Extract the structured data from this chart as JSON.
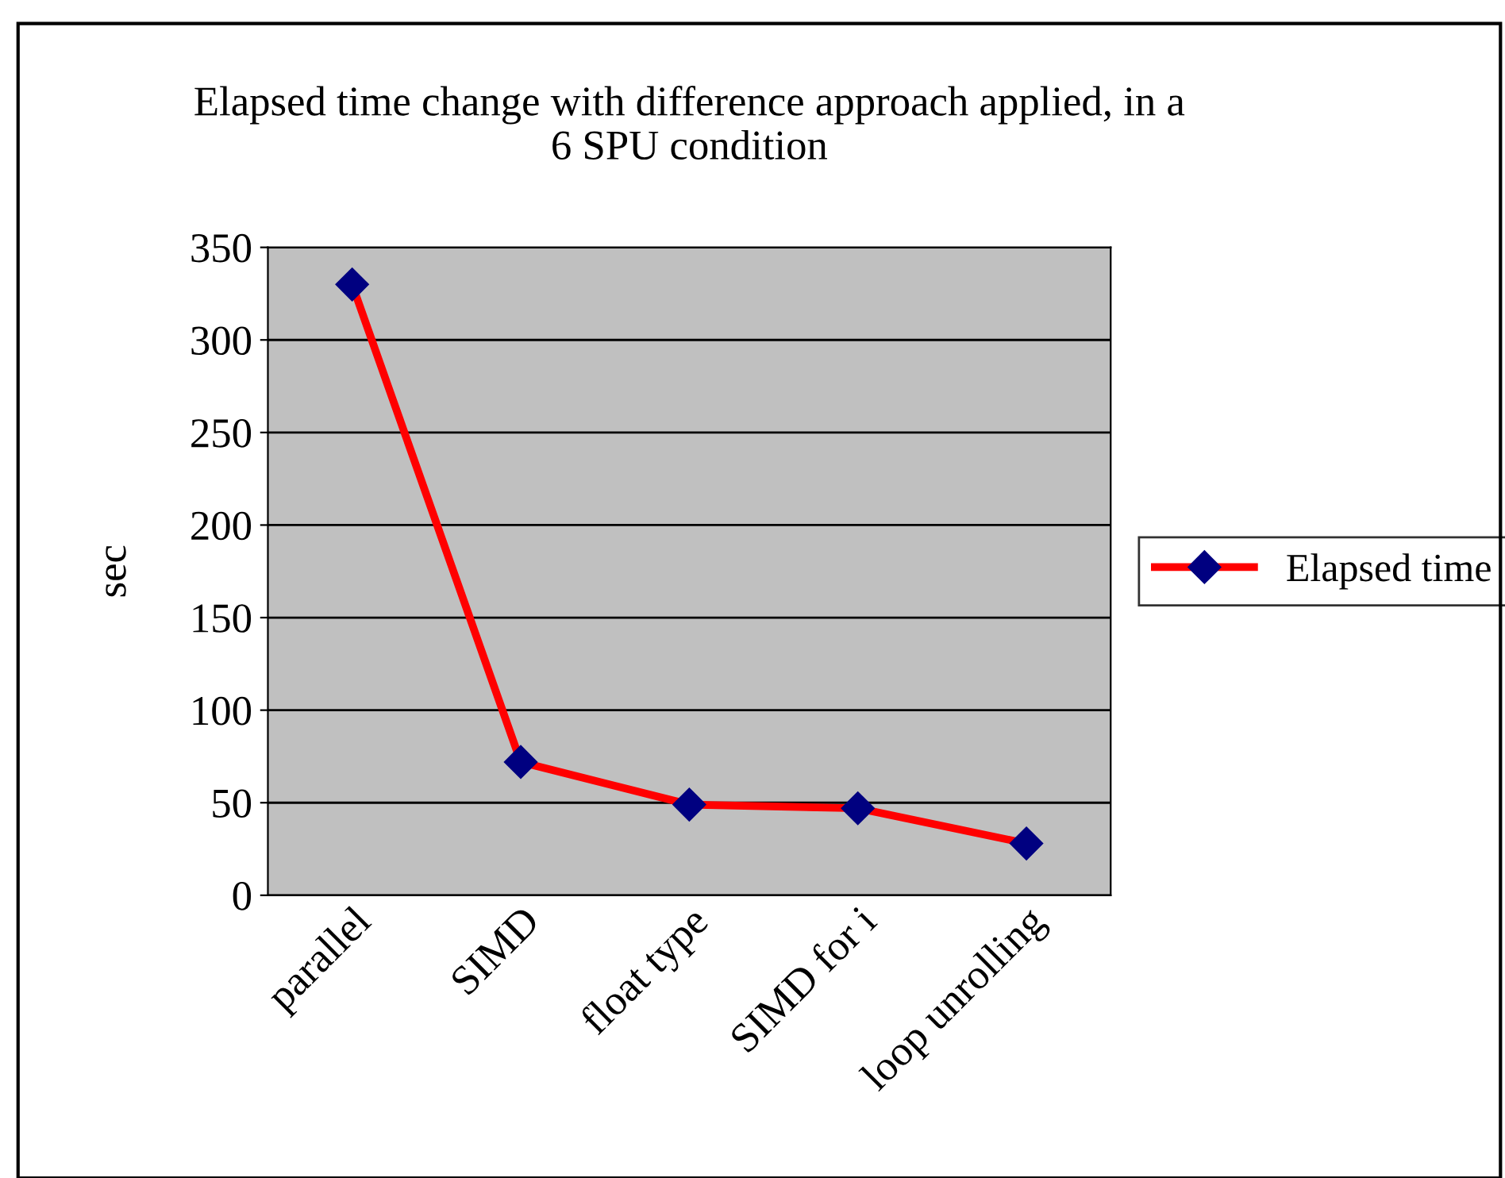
{
  "chart_data": {
    "type": "line",
    "title": "Elapsed time change with difference approach applied, in a\n6 SPU condition",
    "ylabel": "sec",
    "categories": [
      "parallel",
      "SIMD",
      "float type",
      "SIMD for i",
      "loop unrolling"
    ],
    "series": [
      {
        "name": "Elapsed time",
        "color": "#ff0000",
        "values": [
          330,
          72,
          49,
          47,
          28
        ]
      }
    ],
    "ylim": [
      0,
      350
    ],
    "yticks": [
      0,
      50,
      100,
      150,
      200,
      250,
      300,
      350
    ],
    "grid": "y",
    "legend": "right",
    "marker": "diamond",
    "line_style": "solid"
  }
}
